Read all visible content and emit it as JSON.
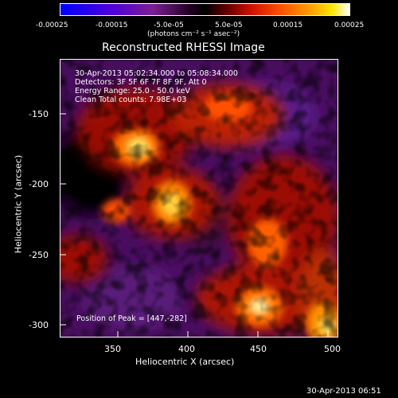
{
  "colorbar": {
    "ticks": [
      "-0.00025",
      "-0.00015",
      "-5.0e-05",
      "5.0e-05",
      "0.00015",
      "0.00025"
    ],
    "units_label": "(photons cm⁻² s⁻¹ asec⁻²)",
    "colors": [
      "#0000ff",
      "#5a00d0",
      "#7a2090",
      "#000000",
      "#b00000",
      "#ff3000",
      "#ff9000",
      "#ffe000",
      "#ffffff"
    ]
  },
  "plot": {
    "title": "Reconstructed RHESSI Image",
    "xlabel": "Heliocentric X (arcsec)",
    "ylabel": "Heliocentric Y (arcsec)",
    "xticks": [
      "350",
      "400",
      "450",
      "500"
    ],
    "yticks": [
      "-150",
      "-200",
      "-250",
      "-300"
    ]
  },
  "overlay": {
    "line1": "30-Apr-2013 05:02:34.000 to 05:08:34.000",
    "line2": "Detectors: 3F 5F 6F 7F 8F 9F, Att 0",
    "line3": "Energy Range: 25.0 - 50.0 keV",
    "line4": "Clean    Total counts: 7.98E+03",
    "peak": "Position of Peak = [447,-282]"
  },
  "timestamp": "30-Apr-2013 06:51"
}
